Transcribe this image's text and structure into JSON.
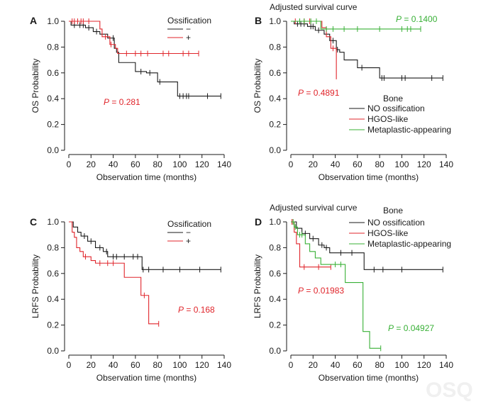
{
  "figure": {
    "watermark": "OSQ"
  },
  "chart_data": [
    {
      "panel": "A",
      "type": "line",
      "title": "",
      "xlabel": "Observation time (months)",
      "ylabel": "OS Probability",
      "xlim": [
        0,
        140
      ],
      "ylim": [
        0,
        1
      ],
      "xticks": [
        "0",
        "20",
        "40",
        "60",
        "80",
        "100",
        "120",
        "140"
      ],
      "yticks": [
        "0.0",
        "0.2",
        "0.4",
        "0.6",
        "0.8",
        "1.0"
      ],
      "legend": {
        "title": "Ossification",
        "items": [
          {
            "label": "−",
            "color": "#1a1a1a"
          },
          {
            "label": "+",
            "color": "#e0252b"
          }
        ]
      },
      "series": [
        {
          "name": "−",
          "color": "#1a1a1a",
          "steps": [
            [
              0,
              1.0
            ],
            [
              2,
              0.97
            ],
            [
              15,
              0.95
            ],
            [
              22,
              0.92
            ],
            [
              28,
              0.9
            ],
            [
              35,
              0.87
            ],
            [
              41,
              0.79
            ],
            [
              43,
              0.76
            ],
            [
              45,
              0.68
            ],
            [
              60,
              0.61
            ],
            [
              70,
              0.6
            ],
            [
              80,
              0.53
            ],
            [
              98,
              0.42
            ],
            [
              137,
              0.42
            ]
          ],
          "censors": [
            [
              5,
              0.97
            ],
            [
              10,
              0.97
            ],
            [
              13,
              0.97
            ],
            [
              18,
              0.95
            ],
            [
              25,
              0.92
            ],
            [
              40,
              0.87
            ],
            [
              65,
              0.61
            ],
            [
              73,
              0.6
            ],
            [
              82,
              0.53
            ],
            [
              100,
              0.42
            ],
            [
              103,
              0.42
            ],
            [
              106,
              0.42
            ],
            [
              108,
              0.42
            ],
            [
              125,
              0.42
            ],
            [
              137,
              0.42
            ]
          ]
        },
        {
          "name": "+",
          "color": "#e0252b",
          "steps": [
            [
              0,
              1.0
            ],
            [
              28,
              0.94
            ],
            [
              30,
              0.88
            ],
            [
              37,
              0.82
            ],
            [
              42,
              0.79
            ],
            [
              44,
              0.75
            ],
            [
              117,
              0.75
            ]
          ],
          "censors": [
            [
              3,
              1.0
            ],
            [
              5,
              1.0
            ],
            [
              8,
              1.0
            ],
            [
              11,
              1.0
            ],
            [
              13,
              1.0
            ],
            [
              18,
              1.0
            ],
            [
              33,
              0.88
            ],
            [
              38,
              0.82
            ],
            [
              52,
              0.75
            ],
            [
              60,
              0.75
            ],
            [
              65,
              0.75
            ],
            [
              71,
              0.75
            ],
            [
              85,
              0.75
            ],
            [
              90,
              0.75
            ],
            [
              103,
              0.75
            ],
            [
              108,
              0.75
            ],
            [
              117,
              0.75
            ]
          ]
        }
      ],
      "annotations": [
        {
          "p_label": "P",
          "text": " = 0.281",
          "color": "#e0252b"
        }
      ]
    },
    {
      "panel": "B",
      "type": "line",
      "title": "Adjusted survival curve",
      "xlabel": "Observation time (months)",
      "ylabel": "OS Probability",
      "xlim": [
        0,
        140
      ],
      "ylim": [
        0,
        1
      ],
      "xticks": [
        "0",
        "20",
        "40",
        "60",
        "80",
        "100",
        "120",
        "140"
      ],
      "yticks": [
        "0.0",
        "0.2",
        "0.4",
        "0.6",
        "0.8",
        "1.0"
      ],
      "legend": {
        "title": "Bone",
        "items": [
          {
            "label": "NO ossification",
            "color": "#1a1a1a"
          },
          {
            "label": "HGOS-like",
            "color": "#e0252b"
          },
          {
            "label": "Metaplastic-appearing",
            "color": "#38b036"
          }
        ]
      },
      "series": [
        {
          "name": "NO ossification",
          "color": "#1a1a1a",
          "steps": [
            [
              0,
              1.0
            ],
            [
              3,
              0.98
            ],
            [
              15,
              0.96
            ],
            [
              22,
              0.93
            ],
            [
              30,
              0.9
            ],
            [
              35,
              0.85
            ],
            [
              41,
              0.78
            ],
            [
              44,
              0.76
            ],
            [
              48,
              0.7
            ],
            [
              60,
              0.64
            ],
            [
              73,
              0.64
            ],
            [
              80,
              0.56
            ],
            [
              137,
              0.56
            ]
          ],
          "censors": [
            [
              6,
              0.98
            ],
            [
              9,
              0.98
            ],
            [
              12,
              0.98
            ],
            [
              18,
              0.96
            ],
            [
              20,
              0.96
            ],
            [
              25,
              0.93
            ],
            [
              38,
              0.85
            ],
            [
              42,
              0.78
            ],
            [
              64,
              0.64
            ],
            [
              82,
              0.56
            ],
            [
              84,
              0.56
            ],
            [
              100,
              0.56
            ],
            [
              103,
              0.56
            ],
            [
              127,
              0.56
            ],
            [
              137,
              0.56
            ]
          ]
        },
        {
          "name": "HGOS-like",
          "color": "#e0252b",
          "steps": [
            [
              0,
              1.0
            ],
            [
              28,
              0.95
            ],
            [
              32,
              0.88
            ],
            [
              36,
              0.79
            ],
            [
              41,
              0.55
            ],
            [
              41,
              0.55
            ]
          ],
          "censors": [
            [
              4,
              1.0
            ],
            [
              8,
              1.0
            ],
            [
              12,
              1.0
            ],
            [
              17,
              1.0
            ],
            [
              38,
              0.79
            ]
          ]
        },
        {
          "name": "Metaplastic-appearing",
          "color": "#38b036",
          "steps": [
            [
              0,
              1.0
            ],
            [
              27,
              0.94
            ],
            [
              117,
              0.94
            ]
          ],
          "censors": [
            [
              8,
              1.0
            ],
            [
              12,
              1.0
            ],
            [
              18,
              1.0
            ],
            [
              23,
              1.0
            ],
            [
              32,
              0.94
            ],
            [
              38,
              0.94
            ],
            [
              48,
              0.94
            ],
            [
              60,
              0.94
            ],
            [
              80,
              0.94
            ],
            [
              100,
              0.94
            ],
            [
              105,
              0.94
            ],
            [
              108,
              0.94
            ],
            [
              117,
              0.94
            ]
          ]
        }
      ],
      "annotations": [
        {
          "p_label": "P",
          "text": " = 0.4891",
          "color": "#e0252b"
        },
        {
          "p_label": "P",
          "text": " = 0.1400",
          "color": "#38b036"
        }
      ]
    },
    {
      "panel": "C",
      "type": "line",
      "title": "",
      "xlabel": "Observation time (months)",
      "ylabel": "LRFS Probability",
      "xlim": [
        0,
        140
      ],
      "ylim": [
        0,
        1
      ],
      "xticks": [
        "0",
        "20",
        "40",
        "60",
        "80",
        "100",
        "120",
        "140"
      ],
      "yticks": [
        "0.0",
        "0.2",
        "0.4",
        "0.6",
        "0.8",
        "1.0"
      ],
      "legend": {
        "title": "Ossification",
        "items": [
          {
            "label": "−",
            "color": "#1a1a1a"
          },
          {
            "label": "+",
            "color": "#e0252b"
          }
        ]
      },
      "series": [
        {
          "name": "−",
          "color": "#1a1a1a",
          "steps": [
            [
              0,
              1.0
            ],
            [
              4,
              0.96
            ],
            [
              8,
              0.92
            ],
            [
              11,
              0.89
            ],
            [
              17,
              0.85
            ],
            [
              24,
              0.8
            ],
            [
              31,
              0.77
            ],
            [
              35,
              0.73
            ],
            [
              66,
              0.63
            ],
            [
              137,
              0.63
            ]
          ],
          "censors": [
            [
              14,
              0.89
            ],
            [
              20,
              0.85
            ],
            [
              28,
              0.8
            ],
            [
              34,
              0.77
            ],
            [
              40,
              0.73
            ],
            [
              43,
              0.73
            ],
            [
              50,
              0.73
            ],
            [
              58,
              0.73
            ],
            [
              62,
              0.73
            ],
            [
              67,
              0.63
            ],
            [
              72,
              0.63
            ],
            [
              85,
              0.63
            ],
            [
              100,
              0.63
            ],
            [
              118,
              0.63
            ],
            [
              137,
              0.63
            ]
          ]
        },
        {
          "name": "+",
          "color": "#e0252b",
          "steps": [
            [
              0,
              1.0
            ],
            [
              3,
              0.92
            ],
            [
              5,
              0.88
            ],
            [
              7,
              0.8
            ],
            [
              10,
              0.77
            ],
            [
              13,
              0.73
            ],
            [
              20,
              0.7
            ],
            [
              24,
              0.68
            ],
            [
              50,
              0.57
            ],
            [
              65,
              0.43
            ],
            [
              72,
              0.21
            ],
            [
              81,
              0.21
            ]
          ],
          "censors": [
            [
              15,
              0.73
            ],
            [
              28,
              0.68
            ],
            [
              35,
              0.68
            ],
            [
              40,
              0.68
            ],
            [
              68,
              0.43
            ],
            [
              81,
              0.21
            ]
          ]
        }
      ],
      "annotations": [
        {
          "p_label": "P",
          "text": " = 0.168",
          "color": "#e0252b"
        }
      ]
    },
    {
      "panel": "D",
      "type": "line",
      "title": "Adjusted survival curve",
      "xlabel": "Observation time (months)",
      "ylabel": "LRFS Probability",
      "xlim": [
        0,
        140
      ],
      "ylim": [
        0,
        1
      ],
      "xticks": [
        "0",
        "20",
        "40",
        "60",
        "80",
        "100",
        "120",
        "140"
      ],
      "yticks": [
        "0.0",
        "0.2",
        "0.4",
        "0.6",
        "0.8",
        "1.0"
      ],
      "legend": {
        "title": "Bone",
        "items": [
          {
            "label": "NO ossification",
            "color": "#1a1a1a"
          },
          {
            "label": "HGOS-like",
            "color": "#e0252b"
          },
          {
            "label": "Metaplastic-appearing",
            "color": "#38b036"
          }
        ]
      },
      "series": [
        {
          "name": "NO ossification",
          "color": "#1a1a1a",
          "steps": [
            [
              0,
              1.0
            ],
            [
              5,
              0.95
            ],
            [
              10,
              0.91
            ],
            [
              17,
              0.87
            ],
            [
              25,
              0.82
            ],
            [
              30,
              0.8
            ],
            [
              35,
              0.76
            ],
            [
              66,
              0.63
            ],
            [
              137,
              0.63
            ]
          ],
          "censors": [
            [
              13,
              0.91
            ],
            [
              20,
              0.87
            ],
            [
              28,
              0.82
            ],
            [
              32,
              0.8
            ],
            [
              45,
              0.76
            ],
            [
              55,
              0.76
            ],
            [
              75,
              0.63
            ],
            [
              83,
              0.63
            ],
            [
              100,
              0.63
            ],
            [
              137,
              0.63
            ]
          ]
        },
        {
          "name": "HGOS-like",
          "color": "#e0252b",
          "steps": [
            [
              0,
              1.0
            ],
            [
              3,
              0.92
            ],
            [
              5,
              0.83
            ],
            [
              8,
              0.65
            ],
            [
              36,
              0.65
            ]
          ],
          "censors": [
            [
              1,
              1.0
            ],
            [
              2,
              1.0
            ],
            [
              12,
              0.65
            ],
            [
              25,
              0.65
            ],
            [
              36,
              0.65
            ]
          ]
        },
        {
          "name": "Metaplastic-appearing",
          "color": "#38b036",
          "steps": [
            [
              0,
              1.0
            ],
            [
              3,
              0.96
            ],
            [
              6,
              0.9
            ],
            [
              13,
              0.83
            ],
            [
              17,
              0.77
            ],
            [
              22,
              0.72
            ],
            [
              27,
              0.67
            ],
            [
              49,
              0.53
            ],
            [
              65,
              0.15
            ],
            [
              71,
              0.02
            ],
            [
              81,
              0.02
            ]
          ],
          "censors": [
            [
              2,
              1.0
            ],
            [
              4,
              0.96
            ],
            [
              8,
              0.9
            ],
            [
              10,
              0.9
            ],
            [
              40,
              0.67
            ],
            [
              45,
              0.67
            ],
            [
              81,
              0.02
            ]
          ]
        }
      ],
      "annotations": [
        {
          "p_label": "P",
          "text": " = 0.01983",
          "color": "#e0252b"
        },
        {
          "p_label": "P",
          "text": " = 0.04927",
          "color": "#38b036"
        }
      ]
    }
  ]
}
